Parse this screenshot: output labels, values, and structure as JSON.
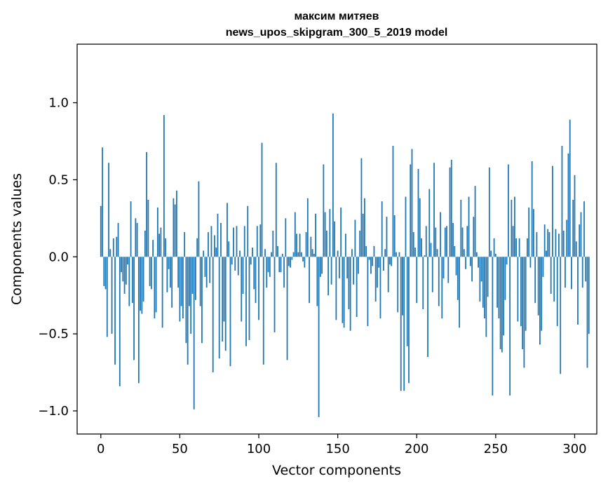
{
  "chart_data": {
    "type": "bar",
    "title_line1": "максим митяев",
    "title_line2": "news_upos_skipgram_300_5_2019 model",
    "xlabel": "Vector components",
    "ylabel": "Components values",
    "xlim": [
      -15,
      314
    ],
    "ylim": [
      -1.15,
      1.38
    ],
    "xticks": [
      0,
      50,
      100,
      150,
      200,
      250,
      300
    ],
    "yticks": [
      1.0,
      0.5,
      0.0,
      -0.5,
      -1.0
    ],
    "ytick_labels": [
      "1.0",
      "0.5",
      "0.0",
      "−0.5",
      "−1.0"
    ],
    "bar_color": "#1f77b4",
    "grid": false,
    "values": [
      0.33,
      0.71,
      -0.19,
      -0.21,
      -0.52,
      0.61,
      0.05,
      -0.5,
      0.12,
      -0.7,
      0.13,
      0.22,
      -0.84,
      -0.1,
      -0.16,
      -0.24,
      -0.18,
      -0.05,
      -0.32,
      0.36,
      -0.3,
      -0.67,
      0.25,
      0.22,
      -0.82,
      -0.35,
      -0.37,
      -0.29,
      0.17,
      0.68,
      0.37,
      -0.19,
      -0.21,
      0.11,
      -0.4,
      -0.36,
      0.32,
      0.15,
      0.19,
      -0.46,
      0.92,
      0.12,
      -0.23,
      -0.08,
      -0.2,
      -0.33,
      0.38,
      0.34,
      0.43,
      -0.2,
      -0.42,
      -0.32,
      -0.4,
      0.16,
      -0.56,
      -0.7,
      -0.32,
      -0.5,
      -0.24,
      -0.99,
      -0.28,
      0.12,
      0.49,
      -0.32,
      -0.56,
      0.04,
      -0.13,
      -0.2,
      0.16,
      -0.17,
      0.2,
      -0.75,
      0.14,
      0.06,
      0.28,
      -0.66,
      0.22,
      -0.55,
      -0.42,
      -0.61,
      0.35,
      0.1,
      -0.71,
      -0.05,
      0.19,
      -0.09,
      0.2,
      -0.12,
      0.04,
      -0.42,
      -0.24,
      0.2,
      -0.58,
      0.33,
      -0.54,
      -0.05,
      0.06,
      -0.21,
      -0.3,
      0.2,
      -0.41,
      0.21,
      0.74,
      -0.7,
      0.05,
      -0.2,
      -0.1,
      -0.13,
      0.03,
      0.17,
      -0.49,
      0.61,
      0.07,
      -0.1,
      -0.1,
      0.02,
      -0.2,
      0.25,
      -0.67,
      -0.06,
      -0.07,
      -0.02,
      0.03,
      0.29,
      0.15,
      0.03,
      0.15,
      0.03,
      -0.03,
      -0.07,
      0.16,
      0.38,
      -0.3,
      0.13,
      0.05,
      0.02,
      0.28,
      -0.32,
      -1.04,
      -0.13,
      -0.11,
      0.6,
      0.29,
      0.17,
      -0.25,
      0.31,
      -0.18,
      0.93,
      0.23,
      -0.41,
      0.04,
      -0.14,
      0.32,
      -0.43,
      -0.46,
      0.15,
      -0.14,
      -0.34,
      -0.48,
      0.05,
      -0.18,
      0.24,
      -0.39,
      -0.11,
      0.17,
      0.64,
      0.28,
      0.38,
      0.07,
      -0.45,
      -0.02,
      -0.11,
      -0.06,
      0.07,
      -0.29,
      -0.2,
      -0.07,
      -0.4,
      0.36,
      -0.09,
      0.05,
      0.26,
      -0.23,
      -0.05,
      -0.06,
      0.72,
      0.27,
      0.03,
      -0.36,
      0.03,
      -0.87,
      -0.38,
      -0.87,
      0.39,
      -0.58,
      -0.82,
      0.6,
      0.7,
      0.16,
      0.06,
      -0.3,
      0.57,
      0.38,
      0.12,
      -0.34,
      0.01,
      0.2,
      -0.65,
      0.44,
      0.09,
      -0.23,
      0.61,
      0.19,
      0.05,
      -0.32,
      0.29,
      -0.4,
      -0.14,
      0.19,
      0.2,
      -0.17,
      0.58,
      0.63,
      0.22,
      0.07,
      -0.12,
      -0.28,
      -0.46,
      0.37,
      0.19,
      0.05,
      -0.08,
      0.2,
      0.39,
      -0.06,
      -0.16,
      0.26,
      0.46,
      0.03,
      -0.07,
      -0.29,
      -0.16,
      -0.33,
      -0.4,
      -0.52,
      -0.26,
      0.58,
      0.04,
      -0.9,
      0.12,
      0.02,
      -0.33,
      -0.4,
      -0.6,
      -0.62,
      -0.51,
      -0.28,
      -0.05,
      0.6,
      -0.9,
      0.37,
      0.2,
      0.39,
      0.12,
      -0.42,
      0.12,
      -0.45,
      -0.6,
      -0.72,
      -0.48,
      0.12,
      0.32,
      -0.07,
      0.62,
      0.31,
      -0.3,
      0.16,
      -0.38,
      -0.57,
      -0.48,
      -0.13,
      0.21,
      0.04,
      0.18,
      0.16,
      -0.24,
      0.59,
      -0.29,
      0.18,
      -0.45,
      0.15,
      -0.76,
      0.72,
      0.17,
      -0.2,
      0.24,
      0.67,
      0.89,
      -0.21,
      0.37,
      0.53,
      0.1,
      -0.44,
      0.21,
      0.29,
      -0.2,
      0.36,
      -0.16,
      -0.72,
      -0.5
    ]
  }
}
